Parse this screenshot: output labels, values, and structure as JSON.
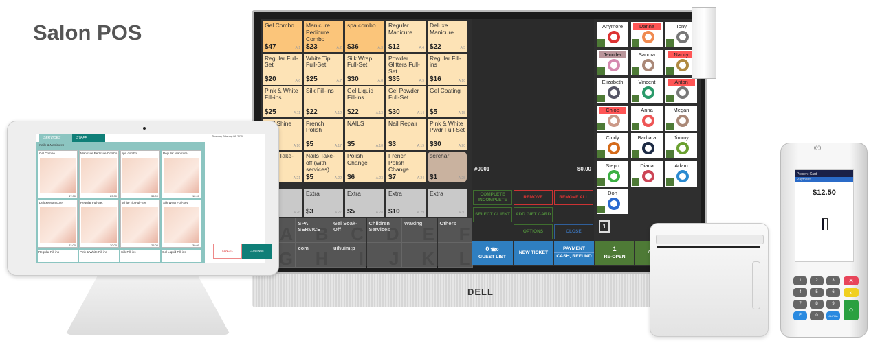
{
  "title": "Salon POS",
  "brand": "DELL",
  "services": [
    {
      "name": "Gel Combo",
      "price": "$47",
      "code": "A.1",
      "style": "hot"
    },
    {
      "name": "Manicure Pedicure Combo",
      "price": "$23",
      "code": "A.2",
      "style": "hot"
    },
    {
      "name": "spa combo",
      "price": "$36",
      "code": "A.3",
      "style": "hot"
    },
    {
      "name": "Regular Manicure",
      "price": "$12",
      "code": "A.4",
      "style": ""
    },
    {
      "name": "Deluxe Manicure",
      "price": "$22",
      "code": "A.5",
      "style": ""
    },
    {
      "name": "Regular Full-Set",
      "price": "$20",
      "code": "A.6",
      "style": ""
    },
    {
      "name": "White Tip Full-Set",
      "price": "$25",
      "code": "A.7",
      "style": ""
    },
    {
      "name": "Silk Wrap Full-Set",
      "price": "$30",
      "code": "A.8",
      "style": ""
    },
    {
      "name": "Powder Glitters Full-Set",
      "price": "$35",
      "code": "A.9",
      "style": ""
    },
    {
      "name": "Regular Fill-ins",
      "price": "$16",
      "code": "A.10",
      "style": ""
    },
    {
      "name": "Pink & White Fill-ins",
      "price": "$25",
      "code": "A.11",
      "style": ""
    },
    {
      "name": "Silk Fill-ins",
      "price": "$22",
      "code": "A.12",
      "style": ""
    },
    {
      "name": "Gel Liquid Fill-ins",
      "price": "$22",
      "code": "A.13",
      "style": ""
    },
    {
      "name": "Gel Powder Full-Set",
      "price": "$30",
      "code": "A.14",
      "style": ""
    },
    {
      "name": "Gel Coating",
      "price": "$5",
      "code": "A.15",
      "style": ""
    },
    {
      "name": "Buff Shine",
      "price": "$5",
      "code": "A.16",
      "style": ""
    },
    {
      "name": "French Polish",
      "price": "$5",
      "code": "A.17",
      "style": ""
    },
    {
      "name": "NAILS",
      "price": "$5",
      "code": "A.18",
      "style": ""
    },
    {
      "name": "Nail Repair",
      "price": "$3",
      "code": "A.19",
      "style": ""
    },
    {
      "name": "Pink & White Pwdr Full-Set",
      "price": "$30",
      "code": "A.20",
      "style": ""
    },
    {
      "name": "Nails Take-off",
      "price": "",
      "code": "A.21",
      "style": ""
    },
    {
      "name": "Nails Take-off (with services)",
      "price": "$5",
      "code": "A.22",
      "style": ""
    },
    {
      "name": "Polish Change",
      "price": "$6",
      "code": "A.23",
      "style": ""
    },
    {
      "name": "French Polish Change",
      "price": "$7",
      "code": "A.24",
      "style": ""
    },
    {
      "name": "serchar",
      "price": "$1",
      "code": "A.25",
      "style": "brown"
    },
    {
      "name": "Extra",
      "price": "",
      "code": "A.26",
      "style": "grey"
    },
    {
      "name": "Extra",
      "price": "$3",
      "code": "A.27",
      "style": "grey"
    },
    {
      "name": "Extra",
      "price": "$5",
      "code": "A.28",
      "style": "grey"
    },
    {
      "name": "Extra",
      "price": "$10",
      "code": "A.29",
      "style": "grey"
    },
    {
      "name": "Extra",
      "price": "",
      "code": "A.30",
      "style": "grey"
    }
  ],
  "categories": [
    {
      "label": "& ures",
      "letter": "A"
    },
    {
      "label": "SPA SERVICE",
      "letter": "B"
    },
    {
      "label": "Gel Soak-Off",
      "letter": "C"
    },
    {
      "label": "Children Services",
      "letter": "D"
    },
    {
      "label": "Waxing",
      "letter": "E"
    },
    {
      "label": "Others",
      "letter": "F"
    },
    {
      "label": "",
      "letter": "G"
    },
    {
      "label": "com",
      "letter": "H"
    },
    {
      "label": "uihuim;p",
      "letter": "I"
    },
    {
      "label": "",
      "letter": "J"
    },
    {
      "label": "",
      "letter": "K"
    },
    {
      "label": "",
      "letter": "L"
    }
  ],
  "ticket": {
    "number": "#0001",
    "total": "$0.00"
  },
  "actions": {
    "complete": "COMPLETE INCOMPLETE",
    "remove": "REMOVE",
    "remove_all": "REMOVE ALL",
    "select_client": "SELECT CLIENT",
    "add_gift_card": "ADD GIFT CARD",
    "options": "OPTIONS",
    "close": "CLOSE",
    "page": "1"
  },
  "bottom": {
    "guest_count": "0",
    "phone_count": "0",
    "guest_list": "GUEST LIST",
    "new_ticket": "NEW TICKET",
    "payment": "PAYMENT",
    "cash_refund": "CASH, REFUND",
    "reopen_count": "1",
    "reopen": "RE-OPEN",
    "add_appt": "ADD APPOINTMENT"
  },
  "staff": [
    {
      "name": "Anymore",
      "tag": "",
      "color": "#d33"
    },
    {
      "name": "Danna",
      "tag": "red",
      "color": "#f08a50"
    },
    {
      "name": "Tony",
      "tag": "",
      "color": "#777"
    },
    {
      "name": "Jennifer",
      "tag": "mauve",
      "color": "#d58ab0"
    },
    {
      "name": "Sandra",
      "tag": "",
      "color": "#a87"
    },
    {
      "name": "Nancy",
      "tag": "red",
      "color": "#b08a40"
    },
    {
      "name": "Elizabeth",
      "tag": "",
      "color": "#556"
    },
    {
      "name": "Vincent",
      "tag": "",
      "color": "#2a9a6a"
    },
    {
      "name": "Anton",
      "tag": "red",
      "color": "#777"
    },
    {
      "name": "Chloe",
      "tag": "red",
      "color": "#c98"
    },
    {
      "name": "Anna",
      "tag": "",
      "color": "#e55"
    },
    {
      "name": "Megan",
      "tag": "",
      "color": "#a87"
    },
    {
      "name": "Cindy",
      "tag": "",
      "color": "#d46a1a"
    },
    {
      "name": "Barbara",
      "tag": "",
      "color": "#1c2a44"
    },
    {
      "name": "Jimmy",
      "tag": "",
      "color": "#6aa030"
    },
    {
      "name": "Steph",
      "tag": "",
      "color": "#3cb043"
    },
    {
      "name": "Diana",
      "tag": "",
      "color": "#c45"
    },
    {
      "name": "Adam",
      "tag": "",
      "color": "#2a8ad0"
    },
    {
      "name": "Don",
      "tag": "",
      "color": "#2a6ad0"
    }
  ],
  "tablet": {
    "tabs": [
      "SERVICES",
      "STAFF"
    ],
    "date": "Thursday, February 06, 2020",
    "section": "Nails & Manicures",
    "cards": [
      {
        "name": "Gel Combo",
        "price": "47.00"
      },
      {
        "name": "Manicure Pedicure Combo",
        "price": "23.00"
      },
      {
        "name": "spa combo",
        "price": "36.00"
      },
      {
        "name": "Regular Manicure",
        "price": "12.00"
      },
      {
        "name": "Deluxe Manicure",
        "price": "22.00"
      },
      {
        "name": "Regular Full-Set",
        "price": "20.00"
      },
      {
        "name": "White Tip Full-Set",
        "price": "25.00"
      },
      {
        "name": "Silk Wrap Full-Set",
        "price": "30.00"
      }
    ],
    "more": [
      "Regular Fill-ins",
      "Pink & White Fill-ins",
      "Silk Fill-ins",
      "Gel Liquid Fill-ins"
    ],
    "cancel": "CANCEL",
    "continue": "CONTINUE"
  },
  "terminal": {
    "header": "Present Card",
    "subheader": "Payment",
    "amount": "$12.50",
    "keys": [
      "1",
      "2",
      "3",
      "4",
      "5",
      "6",
      "7",
      "8",
      "9",
      "F",
      "0",
      "ALPHA"
    ]
  },
  "colors": {
    "service": "#fde3b6",
    "combo": "#fbc57a",
    "blue": "#2f7fc1",
    "green": "#4e7a36",
    "teal": "#0f7f78"
  }
}
